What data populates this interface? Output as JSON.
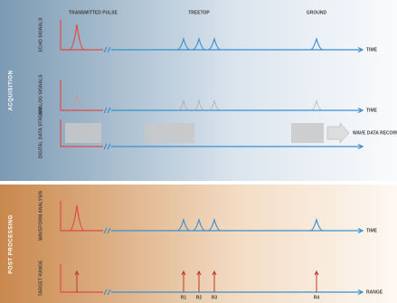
{
  "header": {
    "transmitted": "TRANSMITTED PULSE",
    "treetop": "TREETOP",
    "ground": "GROUND"
  },
  "sections": {
    "acquisition": "ACQUISITION",
    "post": "POST PROCESSING"
  },
  "rows": [
    {
      "label": "ECHO SIGNALS",
      "axis": "TIME"
    },
    {
      "label": "ANALOG SIGNALS",
      "axis": "TIME"
    },
    {
      "label": "DIGITAL DATA STREAM",
      "axis": "WAVE DATA RECORDER"
    },
    {
      "label": "WAVEFORM ANALYSIS",
      "axis": "TIME"
    },
    {
      "label": "TARGET RANGE",
      "axis": "RANGE"
    }
  ],
  "ranges": [
    "R1",
    "R2",
    "R3",
    "R4"
  ]
}
